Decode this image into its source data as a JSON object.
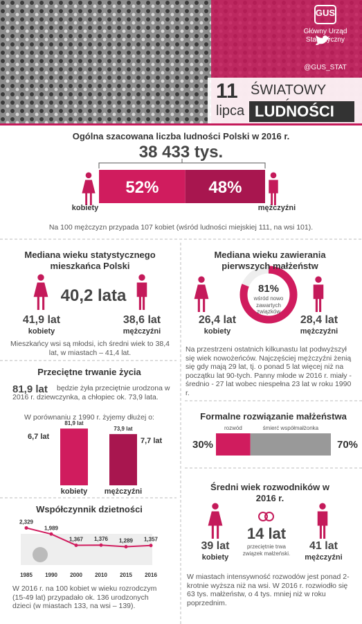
{
  "header": {
    "logo": "GUS",
    "organization": "Główny Urząd Statystyczny",
    "twitter": "@GUS_STAT",
    "day": "11",
    "month": "lipca",
    "title_line1": "ŚWIATOWY DZIEŃ",
    "title_line2": "LUDNOŚCI"
  },
  "population": {
    "title": "Ogólna szacowana liczba ludności Polski w 2016 r.",
    "total": "38 433 tys.",
    "shares": [
      52,
      48
    ],
    "share_labels": [
      "52%",
      "48%"
    ],
    "women_label": "kobiety",
    "men_label": "mężczyźni",
    "note": "Na 100 mężczyzn przypada 107 kobiet (wśród ludności miejskiej 111, na wsi 101)."
  },
  "median_age": {
    "title": "Mediana wieku statystycznego mieszkańca Polski",
    "overall": "40,2 lata",
    "women": "41,9 lat",
    "women_label": "kobiety",
    "men": "38,6 lat",
    "men_label": "mężczyźni",
    "note": "Mieszkańcy wsi są młodsi, ich średni wiek to 38,4 lat, w miastach – 41,4 lat."
  },
  "marriage": {
    "title": "Mediana wieku zawierania pierwszych małżeństw",
    "women": "26,4 lat",
    "women_label": "kobiety",
    "men": "28,4 lat",
    "men_label": "mężczyźni",
    "donut_value": 81,
    "donut_label": "81%",
    "donut_caption": "wśród nowo zawartych związków",
    "note": "Na przestrzeni ostatnich kilkunastu lat podwyższył się wiek nowożeńców. Najczęściej mężczyźni żenią się gdy mają 29 lat, tj. o ponad 5 lat więcej niż na początku lat 90-tych. Panny młode w 2016 r. miały - średnio - 27 lat wobec niespełna 23 lat w roku 1990 r."
  },
  "life": {
    "title": "Przeciętne trwanie życia",
    "lead": "81,9 lat",
    "text": "będzie żyła przeciętnie urodzona w 2016 r. dziewczynka, a chłopiec ok. 73,9 lata.",
    "compare": "W porównaniu z 1990 r. żyjemy dłużej o:",
    "values": [
      81.9,
      73.9
    ],
    "value_labels": [
      "81,9 lat",
      "73,9 lat"
    ],
    "gains": [
      "6,7 lat",
      "7,7 lat"
    ],
    "labels": [
      "kobiety",
      "mężczyźni"
    ]
  },
  "dissolution": {
    "title": "Formalne rozwiązanie małżeństwa",
    "values": [
      30,
      70
    ],
    "value_labels": [
      "30%",
      "70%"
    ],
    "names": [
      "rozwód",
      "śmierć współmałżonka"
    ]
  },
  "fertility": {
    "title": "Współczynnik dzietności",
    "categories": [
      "1985",
      "1990",
      "2000",
      "2010",
      "2015",
      "2016"
    ],
    "values": [
      2.329,
      1.989,
      1.367,
      1.376,
      1.289,
      1.357
    ],
    "value_labels": [
      "2,329",
      "1,989",
      "1,367",
      "1,376",
      "1,289",
      "1,357"
    ],
    "note": "W 2016 r. na 100 kobiet w wieku rozrodczym (15-49 lat) przypadało ok. 136 urodzonych dzieci (w miastach 133, na wsi – 139)."
  },
  "divorcees": {
    "title": "Średni wiek rozwodników w 2016 r.",
    "women": "39 lat",
    "women_label": "kobiety",
    "duration": "14 lat",
    "duration_caption": "przeciętnie trwa związek małżeński.",
    "men": "41 lat",
    "men_label": "mężczyźni",
    "note": "W miastach intensywność rozwodów jest ponad 2-krotnie wyższa niż na wsi. W 2016 r. rozwiodło się 63 tys. małżeństw, o 4 tys. mniej niż w roku poprzednim."
  }
}
